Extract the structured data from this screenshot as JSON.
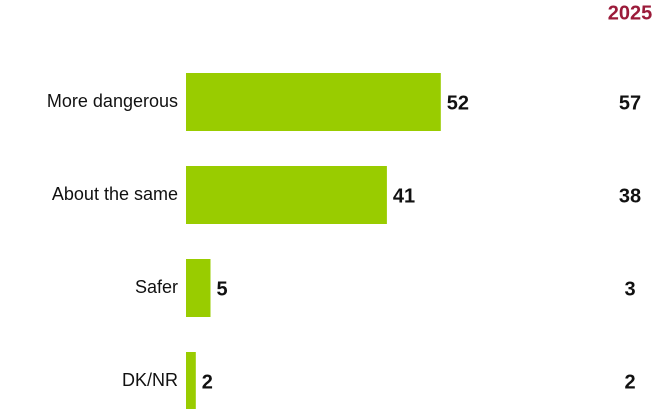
{
  "chart_data": {
    "type": "bar",
    "orientation": "horizontal",
    "categories": [
      "More dangerous",
      "About the same",
      "Safer",
      "DK/NR"
    ],
    "values": [
      52,
      41,
      5,
      2
    ],
    "color": "#99cc00",
    "xlim": [
      0,
      100
    ],
    "comparison": {
      "title": "2025",
      "title_color": "#9b1b3a",
      "values": [
        57,
        38,
        3,
        2
      ]
    }
  }
}
